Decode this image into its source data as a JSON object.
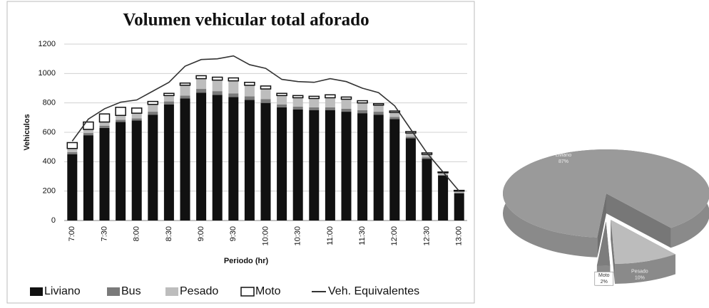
{
  "chart_data": [
    {
      "type": "bar",
      "title": "Volumen vehicular total aforado",
      "x_label": "Periodo (hr)",
      "y_label": "Vehiculos",
      "categories": [
        "7:00",
        null,
        "7:30",
        null,
        "8:00",
        null,
        "8:30",
        null,
        "9:00",
        null,
        "9:30",
        null,
        "10:00",
        null,
        "10:30",
        null,
        "11:00",
        null,
        "11:30",
        null,
        "12:00",
        null,
        "12:30",
        null,
        "13:00"
      ],
      "series": [
        {
          "name": "Liviano",
          "color": "#111111",
          "values": [
            450,
            580,
            630,
            670,
            680,
            720,
            790,
            830,
            870,
            855,
            840,
            820,
            800,
            770,
            755,
            750,
            750,
            740,
            730,
            720,
            690,
            560,
            420,
            305,
            185
          ]
        },
        {
          "name": "Bus",
          "color": "#7a7a7a",
          "values": [
            15,
            15,
            15,
            15,
            15,
            20,
            20,
            20,
            25,
            25,
            25,
            25,
            25,
            20,
            20,
            20,
            20,
            20,
            20,
            20,
            15,
            10,
            10,
            5,
            5
          ]
        },
        {
          "name": "Pesado",
          "color": "#bdbdbd",
          "values": [
            25,
            25,
            25,
            30,
            35,
            50,
            40,
            70,
            70,
            75,
            85,
            75,
            70,
            60,
            60,
            60,
            65,
            65,
            50,
            45,
            30,
            25,
            20,
            15,
            10
          ]
        },
        {
          "name": "Moto",
          "color": "#ffffff",
          "values": [
            40,
            50,
            55,
            55,
            35,
            20,
            15,
            15,
            20,
            20,
            20,
            20,
            20,
            15,
            15,
            15,
            20,
            15,
            15,
            10,
            10,
            10,
            10,
            5,
            5
          ]
        },
        {
          "name": "Veh. Equivalentes",
          "type": "line",
          "color": "#333333",
          "values": [
            540,
            690,
            760,
            805,
            820,
            880,
            940,
            1050,
            1095,
            1100,
            1120,
            1060,
            1035,
            960,
            945,
            940,
            965,
            945,
            900,
            870,
            780,
            620,
            460,
            330,
            200
          ]
        }
      ],
      "stacked": true,
      "ylim": [
        0,
        1200
      ],
      "yticks": [
        0,
        200,
        400,
        600,
        800,
        1000,
        1200
      ],
      "grid": true,
      "legend": "bottom"
    },
    {
      "type": "pie",
      "categories": [
        "Liviano",
        "Moto",
        "Pesado"
      ],
      "values": [
        87,
        2,
        10
      ],
      "value_labels": [
        "87%",
        "2%",
        "10%"
      ],
      "colors": [
        "#9a9a9a",
        "#7d7d7d",
        "#bcbcbc"
      ]
    }
  ]
}
